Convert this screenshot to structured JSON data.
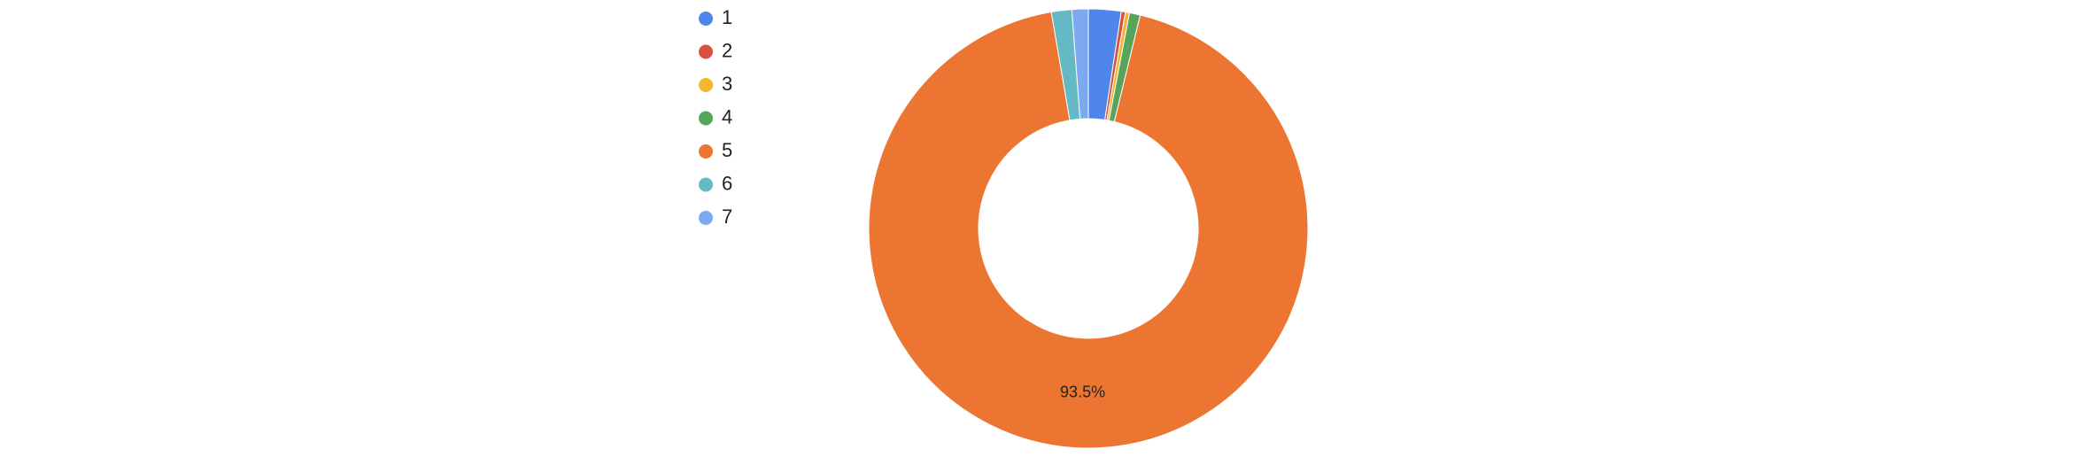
{
  "chart_data": {
    "type": "donut",
    "categories": [
      "1",
      "2",
      "3",
      "4",
      "5",
      "6",
      "7"
    ],
    "values": [
      2.4,
      0.3,
      0.3,
      0.8,
      93.5,
      1.5,
      1.2
    ],
    "value_labels": [
      null,
      null,
      null,
      null,
      "93.5%",
      null,
      null
    ],
    "colors": [
      "#4f86ec",
      "#d9503f",
      "#f2b632",
      "#57a55a",
      "#ed7532",
      "#63b9c4",
      "#7baaf0"
    ],
    "legend": "left"
  }
}
